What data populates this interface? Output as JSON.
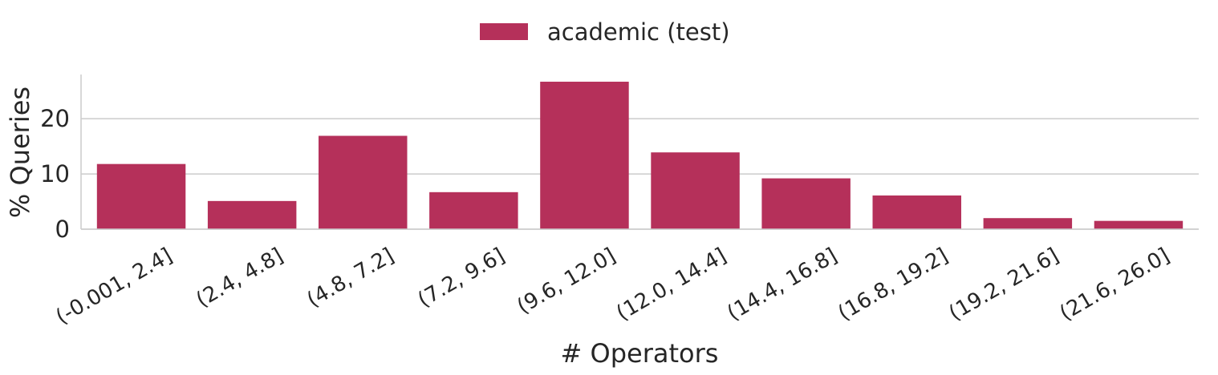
{
  "chart_data": {
    "type": "bar",
    "categories": [
      "(-0.001, 2.4]",
      "(2.4, 4.8]",
      "(4.8, 7.2]",
      "(7.2, 9.6]",
      "(9.6, 12.0]",
      "(12.0, 14.4]",
      "(14.4, 16.8]",
      "(16.8, 19.2]",
      "(19.2, 21.6]",
      "(21.6, 26.0]"
    ],
    "series": [
      {
        "name": "academic (test)",
        "values": [
          11.8,
          5.1,
          16.9,
          6.7,
          26.7,
          13.9,
          9.2,
          6.1,
          2.0,
          1.5
        ],
        "color": "#b5305a"
      }
    ],
    "xlabel": "# Operators",
    "ylabel": "% Queries",
    "ylim": [
      0,
      28
    ],
    "yticks": [
      0,
      10,
      20
    ],
    "grid": true,
    "legend_position": "top-center"
  }
}
